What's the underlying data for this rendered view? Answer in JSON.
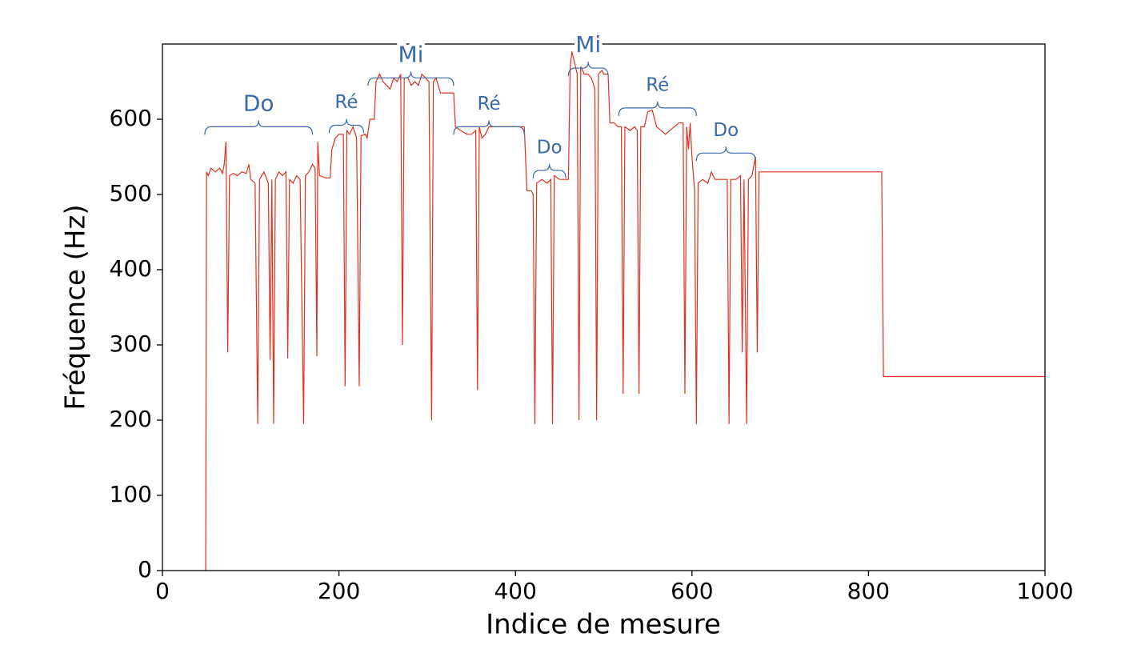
{
  "chart_data": {
    "type": "line",
    "xlabel": "Indice de mesure",
    "ylabel": "Fréquence (Hz)",
    "color": "#e0301e",
    "xlim": [
      0,
      1000
    ],
    "ylim": [
      0,
      700
    ],
    "xticks": [
      0,
      200,
      400,
      600,
      800,
      1000
    ],
    "yticks": [
      0,
      100,
      200,
      300,
      400,
      500,
      600
    ],
    "x": [
      49,
      50,
      52,
      55,
      60,
      65,
      68,
      70,
      72,
      74,
      76,
      80,
      85,
      90,
      95,
      98,
      100,
      105,
      108,
      110,
      115,
      120,
      122,
      124,
      126,
      128,
      132,
      136,
      140,
      142,
      144,
      148,
      152,
      156,
      160,
      162,
      166,
      170,
      173,
      175,
      176,
      178,
      185,
      190,
      192,
      196,
      200,
      205,
      207,
      209,
      212,
      216,
      220,
      223,
      225,
      230,
      232,
      235,
      240,
      242,
      246,
      250,
      254,
      258,
      262,
      266,
      270,
      272,
      274,
      278,
      282,
      286,
      290,
      294,
      298,
      302,
      305,
      307,
      310,
      315,
      325,
      330,
      332,
      338,
      345,
      350,
      355,
      357,
      359,
      362,
      366,
      370,
      380,
      390,
      400,
      410,
      413,
      418,
      420,
      422,
      424,
      430,
      436,
      440,
      442,
      444,
      450,
      455,
      460,
      462,
      464,
      466,
      468,
      470,
      472,
      474,
      478,
      482,
      486,
      490,
      492,
      494,
      498,
      500,
      505,
      507,
      512,
      516,
      520,
      522,
      524,
      530,
      535,
      538,
      540,
      542,
      546,
      550,
      555,
      560,
      565,
      570,
      575,
      580,
      585,
      590,
      592,
      594,
      596,
      598,
      600,
      603,
      605,
      607,
      612,
      618,
      622,
      626,
      630,
      640,
      642,
      644,
      650,
      655,
      657,
      659,
      662,
      664,
      668,
      672,
      674,
      676,
      700,
      815,
      817,
      1000
    ],
    "values": [
      0,
      530,
      525,
      535,
      530,
      535,
      528,
      540,
      570,
      290,
      525,
      528,
      525,
      530,
      528,
      540,
      520,
      515,
      195,
      520,
      530,
      515,
      280,
      520,
      195,
      520,
      530,
      525,
      530,
      282,
      520,
      515,
      525,
      520,
      195,
      525,
      530,
      540,
      535,
      285,
      570,
      525,
      522,
      522,
      560,
      575,
      580,
      580,
      245,
      585,
      580,
      590,
      575,
      245,
      578,
      580,
      575,
      600,
      600,
      650,
      660,
      650,
      645,
      640,
      655,
      650,
      660,
      300,
      655,
      655,
      645,
      650,
      645,
      660,
      655,
      650,
      200,
      650,
      655,
      635,
      635,
      635,
      590,
      585,
      580,
      580,
      585,
      240,
      590,
      575,
      580,
      590,
      590,
      590,
      590,
      590,
      505,
      505,
      500,
      195,
      515,
      520,
      515,
      520,
      195,
      525,
      520,
      520,
      520,
      670,
      690,
      680,
      670,
      660,
      200,
      670,
      660,
      660,
      655,
      640,
      200,
      660,
      665,
      660,
      660,
      595,
      595,
      590,
      590,
      235,
      590,
      585,
      590,
      585,
      235,
      590,
      590,
      610,
      612,
      590,
      585,
      580,
      585,
      590,
      595,
      595,
      235,
      590,
      560,
      595,
      550,
      505,
      195,
      515,
      520,
      515,
      530,
      520,
      520,
      520,
      195,
      520,
      520,
      525,
      290,
      520,
      195,
      520,
      525,
      550,
      290,
      530,
      530,
      530,
      258,
      258
    ],
    "annotations": [
      {
        "text": "Do",
        "x": [
          48,
          170
        ],
        "y": 590
      },
      {
        "text": "Ré",
        "x": [
          189,
          228
        ],
        "y": 592
      },
      {
        "text": "Mi",
        "x": [
          233,
          330
        ],
        "y": 655
      },
      {
        "text": "Ré",
        "x": [
          330,
          410
        ],
        "y": 590
      },
      {
        "text": "Do",
        "x": [
          420,
          457
        ],
        "y": 532
      },
      {
        "text": "Mi",
        "x": [
          460,
          505
        ],
        "y": 668
      },
      {
        "text": "Ré",
        "x": [
          517,
          605
        ],
        "y": 615
      },
      {
        "text": "Do",
        "x": [
          605,
          672
        ],
        "y": 555
      }
    ]
  }
}
